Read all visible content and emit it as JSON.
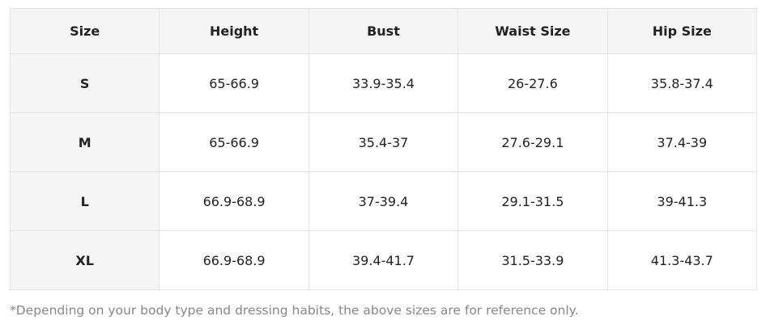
{
  "table": {
    "header": [
      "Size",
      "Height",
      "Bust",
      "Waist Size",
      "Hip Size"
    ],
    "rows": [
      [
        "S",
        "65-66.9",
        "33.9-35.4",
        "26-27.6",
        "35.8-37.4"
      ],
      [
        "M",
        "65-66.9",
        "35.4-37",
        "27.6-29.1",
        "37.4-39"
      ],
      [
        "L",
        "66.9-68.9",
        "37-39.4",
        "29.1-31.5",
        "39-41.3"
      ],
      [
        "XL",
        "66.9-68.9",
        "39.4-41.7",
        "31.5-33.9",
        "41.3-43.7"
      ]
    ]
  },
  "footnote": "*Depending on your body type and dressing habits, the above sizes are for reference only."
}
